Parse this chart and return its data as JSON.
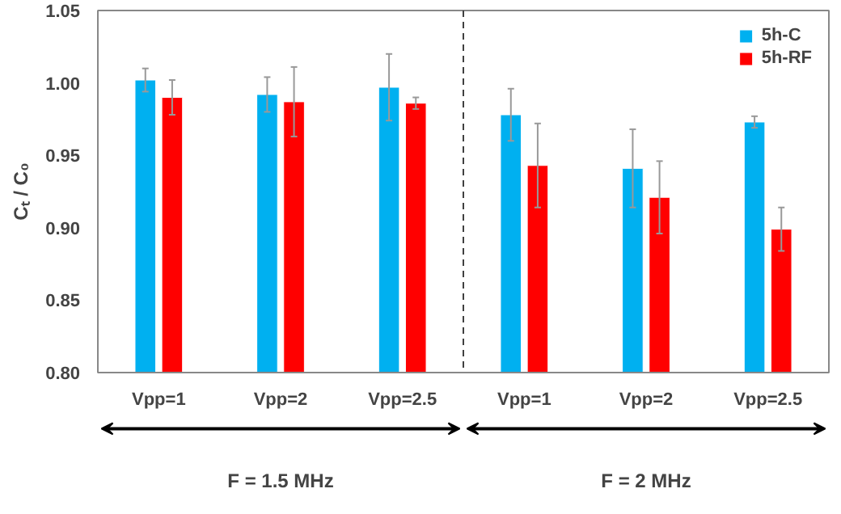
{
  "chart_data": {
    "type": "bar",
    "ylabel": "Cₜ / C₀",
    "categories": [
      "Vpp=1",
      "Vpp=2",
      "Vpp=2.5",
      "Vpp=1",
      "Vpp=2",
      "Vpp=2.5"
    ],
    "series": [
      {
        "name": "5h-C",
        "color": "#00b0f0",
        "values": [
          1.002,
          0.992,
          0.997,
          0.978,
          0.941,
          0.973
        ],
        "errors": [
          0.008,
          0.012,
          0.023,
          0.018,
          0.027,
          0.004
        ]
      },
      {
        "name": "5h-RF",
        "color": "#ff0000",
        "values": [
          0.99,
          0.987,
          0.986,
          0.943,
          0.921,
          0.899
        ],
        "errors": [
          0.012,
          0.024,
          0.004,
          0.029,
          0.025,
          0.015
        ]
      }
    ],
    "ylim": [
      0.8,
      1.05
    ],
    "yticks": [
      {
        "value": 0.8,
        "label": "0.80"
      },
      {
        "value": 0.85,
        "label": "0.85"
      },
      {
        "value": 0.9,
        "label": "0.90"
      },
      {
        "value": 0.95,
        "label": "0.95"
      },
      {
        "value": 1.0,
        "label": "1.00"
      },
      {
        "value": 1.05,
        "label": "1.05"
      }
    ],
    "annotations": [
      "F = 1.5 MHz",
      "F = 2 MHz"
    ],
    "grid": false,
    "legend": "top right"
  }
}
